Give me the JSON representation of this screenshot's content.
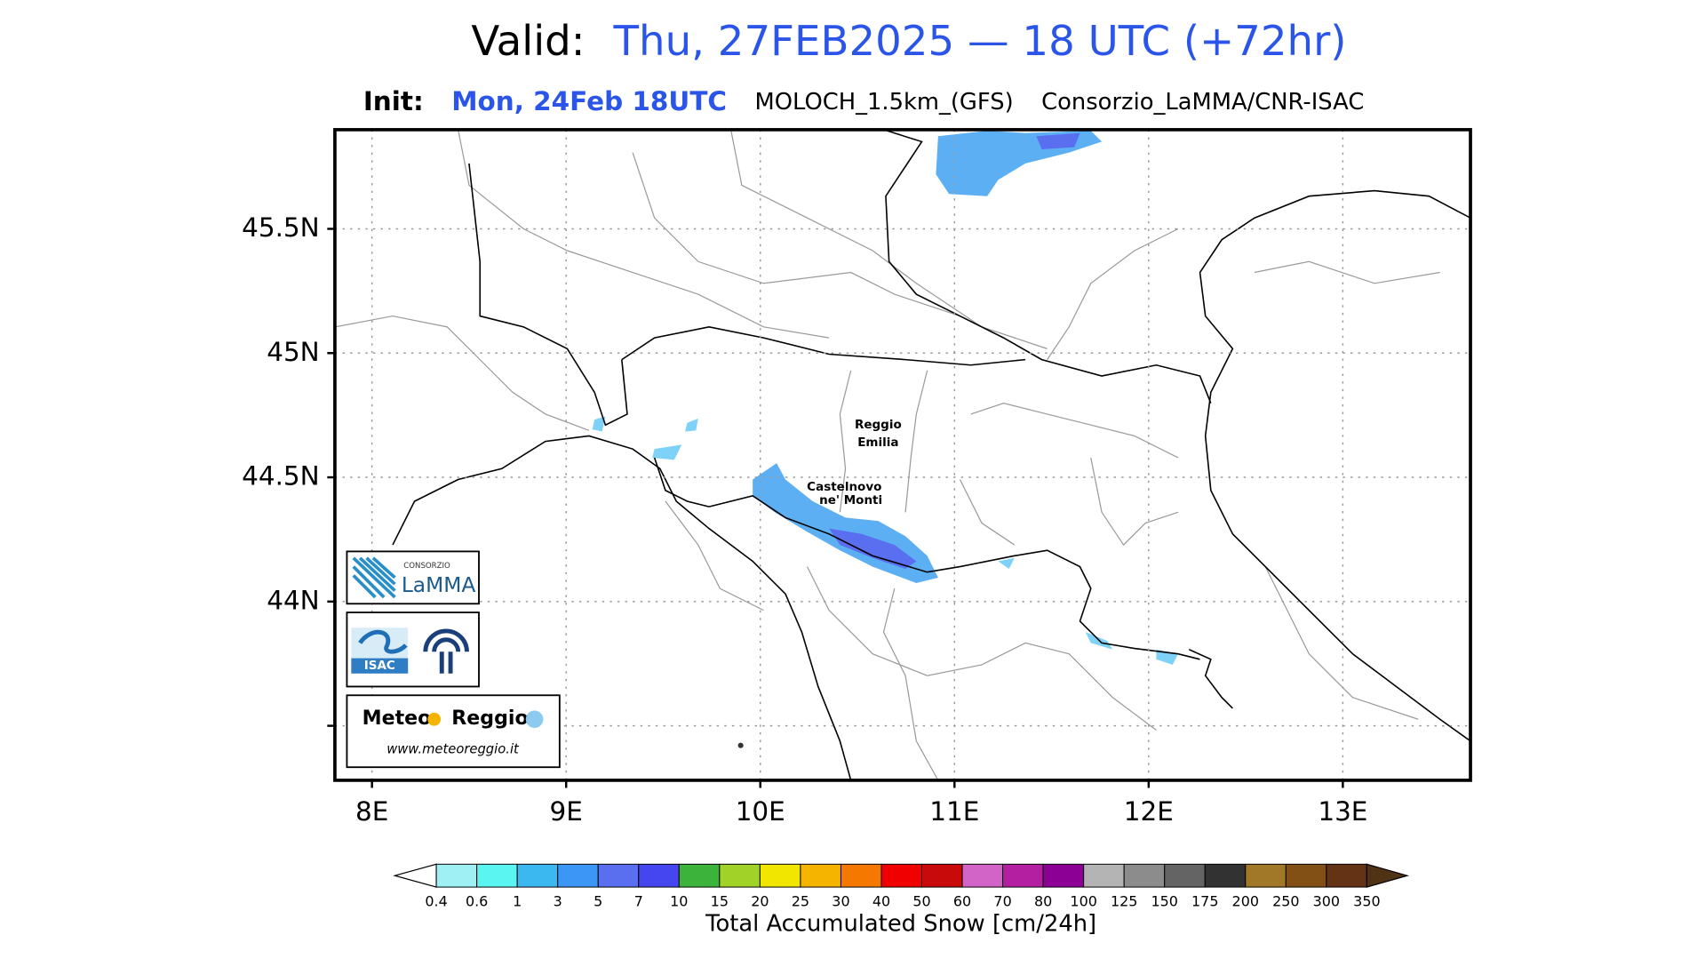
{
  "header": {
    "valid_label": "Valid:",
    "valid_time": "Thu, 27FEB2025 — 18 UTC (+72hr)",
    "init_label": "Init:",
    "init_time": "Mon, 24Feb 18UTC",
    "model": "MOLOCH_1.5km_(GFS)",
    "producer": "Consorzio_LaMMA/CNR-ISAC"
  },
  "map": {
    "lat_labels": [
      "45.5N",
      "45N",
      "44.5N",
      "44N"
    ],
    "lon_labels": [
      "8E",
      "9E",
      "10E",
      "11E",
      "12E",
      "13E"
    ],
    "places": [
      {
        "lines": [
          "Reggio",
          "Emilia"
        ]
      },
      {
        "lines": [
          "Castelnovo",
          "ne' Monti"
        ]
      }
    ]
  },
  "logos": {
    "lamma": [
      "CONSORZIO",
      "LaMMA"
    ],
    "isac": "ISAC",
    "meteoreggio": [
      "Meteo",
      "Reggio",
      "www.meteoreggio.it"
    ]
  },
  "colorbar": {
    "levels": [
      0.4,
      0.6,
      1,
      3,
      5,
      7,
      10,
      15,
      20,
      25,
      30,
      40,
      50,
      60,
      70,
      80,
      100,
      125,
      150,
      175,
      200,
      250,
      300,
      350
    ],
    "colors": [
      "#9ef0f5",
      "#5af5f0",
      "#3cb8f0",
      "#3c96f5",
      "#5a6ef0",
      "#4646f0",
      "#3cb43c",
      "#a0d228",
      "#f0e600",
      "#f5b400",
      "#f57800",
      "#f00000",
      "#c80a0a",
      "#d264c8",
      "#b41ea0",
      "#8c0096",
      "#b4b4b4",
      "#8c8c8c",
      "#646464",
      "#323232",
      "#a07828",
      "#825014",
      "#643214"
    ],
    "title": "Total Accumulated Snow [cm/24h]"
  }
}
